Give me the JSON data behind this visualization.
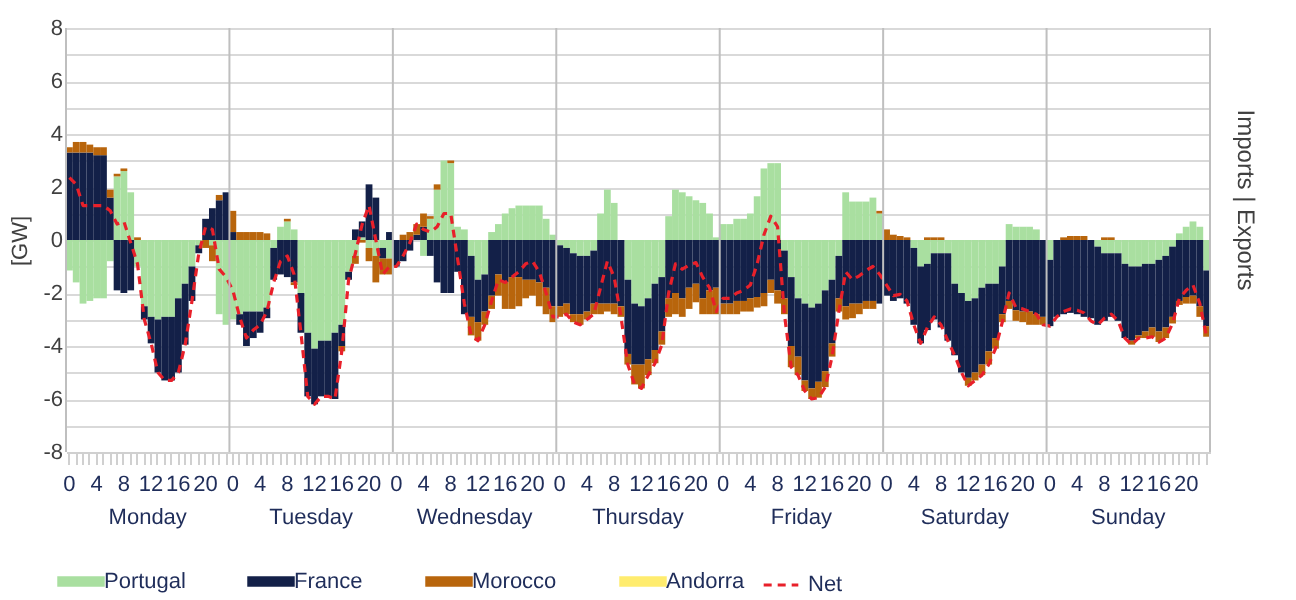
{
  "chart_data": {
    "type": "bar",
    "stacked": true,
    "ylabel": "[GW]",
    "y2label": "Imports | Exports",
    "legend": "bottom",
    "grid": "y",
    "categories": [
      "0",
      null,
      null,
      null,
      "4",
      null,
      null,
      null,
      "8",
      null,
      null,
      null,
      "12",
      null,
      null,
      null,
      "16",
      null,
      null,
      null,
      "20",
      null,
      null,
      null,
      "0",
      null,
      null,
      null,
      "4",
      null,
      null,
      null,
      "8",
      null,
      null,
      null,
      "12",
      null,
      null,
      null,
      "16",
      null,
      null,
      null,
      "20",
      null,
      null,
      null,
      "0",
      null,
      null,
      null,
      "4",
      null,
      null,
      null,
      "8",
      null,
      null,
      null,
      "12",
      null,
      null,
      null,
      "16",
      null,
      null,
      null,
      "20",
      null,
      null,
      null,
      "0",
      null,
      null,
      null,
      "4",
      null,
      null,
      null,
      "8",
      null,
      null,
      null,
      "12",
      null,
      null,
      null,
      "16",
      null,
      null,
      null,
      "20",
      null,
      null,
      null,
      "0",
      null,
      null,
      null,
      "4",
      null,
      null,
      null,
      "8",
      null,
      null,
      null,
      "12",
      null,
      null,
      null,
      "16",
      null,
      null,
      null,
      "20",
      null,
      null,
      null,
      "0",
      null,
      null,
      null,
      "4",
      null,
      null,
      null,
      "8",
      null,
      null,
      null,
      "12",
      null,
      null,
      null,
      "16",
      null,
      null,
      null,
      "20",
      null,
      null,
      null,
      "0",
      null,
      null,
      null,
      "4",
      null,
      null,
      null,
      "8",
      null,
      null,
      null,
      "12",
      null,
      null,
      null,
      "16",
      null,
      null,
      null,
      "20",
      null,
      null,
      null
    ],
    "annotations": [
      "Monday",
      "Tuesday",
      "Wednesday",
      "Thursday",
      "Friday",
      "Saturday",
      "Sunday"
    ],
    "ylim": [
      -8,
      8
    ],
    "yticks": [
      -8,
      {
        "value": -7,
        "label": null
      },
      -6,
      {
        "value": -5,
        "label": null
      },
      -4,
      {
        "value": -3,
        "label": null
      },
      -2,
      {
        "value": -1,
        "label": null
      },
      0,
      {
        "value": 1,
        "label": null
      },
      2,
      {
        "value": 3,
        "label": null
      },
      4,
      {
        "value": 5,
        "label": null
      },
      6,
      {
        "value": 7,
        "label": null
      },
      8
    ],
    "series": [
      {
        "name": "Portugal",
        "color": "#a9dfa0",
        "values": [
          -1.15,
          -1.6,
          -2.4,
          -2.3,
          -2.2,
          -2.2,
          -0.8,
          2.4,
          2.6,
          1.8,
          -1.0,
          -2.5,
          -2.9,
          -3.0,
          -2.9,
          -2.9,
          -2.2,
          -1.65,
          -1.0,
          -0.2,
          0,
          -0.2,
          -2.8,
          -3.2,
          -3.0,
          -2.8,
          -2.7,
          -2.7,
          -2.7,
          -2.55,
          -0.3,
          0.5,
          0.7,
          0.4,
          -2.0,
          -3.5,
          -4.1,
          -3.8,
          -3.8,
          -3.5,
          -3.2,
          -1.2,
          -0.6,
          0.1,
          -0.3,
          -0.6,
          -0.3,
          -0.7,
          0,
          0,
          0,
          0,
          -0.6,
          0.8,
          1.9,
          3.0,
          2.9,
          0.5,
          0.4,
          -0.6,
          -1.5,
          -1.3,
          0.3,
          0.6,
          1.0,
          1.2,
          1.3,
          1.3,
          1.3,
          1.3,
          0.8,
          0.2,
          -0.2,
          -0.3,
          -0.5,
          -0.6,
          -0.6,
          -0.4,
          1.0,
          1.9,
          1.4,
          0,
          -1.5,
          -2.4,
          -2.5,
          -2.2,
          -1.65,
          -1.4,
          0.9,
          1.9,
          1.8,
          1.65,
          1.5,
          1.4,
          1.0,
          0.1,
          0.6,
          0.6,
          0.8,
          0.8,
          1.0,
          1.65,
          2.7,
          2.9,
          2.9,
          -0.4,
          -1.4,
          -2.2,
          -2.4,
          -2.55,
          -2.4,
          -1.9,
          -1.5,
          -0.6,
          1.8,
          1.45,
          1.45,
          1.45,
          1.6,
          1.0,
          0,
          0,
          0,
          0,
          -0.3,
          -1.0,
          -0.9,
          -0.5,
          -0.5,
          -0.5,
          -1.65,
          -2.0,
          -2.3,
          -2.2,
          -1.8,
          -1.65,
          -1.65,
          -1.0,
          0.6,
          0.5,
          0.5,
          0.5,
          0.4,
          0,
          -0.75,
          0,
          0,
          0,
          0,
          0,
          0,
          -0.25,
          -0.5,
          -0.5,
          -0.5,
          -0.9,
          -1.0,
          -1.0,
          -0.9,
          -0.9,
          -0.75,
          -0.6,
          -0.25,
          0.25,
          0.5,
          0.7,
          0.5,
          -1.15
        ]
      },
      {
        "name": "France",
        "color": "#132048",
        "values": [
          3.3,
          3.3,
          3.3,
          3.3,
          3.2,
          3.2,
          1.6,
          -1.9,
          -2.0,
          -1.9,
          0,
          -0.5,
          -1.0,
          -2.0,
          -2.4,
          -2.4,
          -2.8,
          -2.3,
          -1.3,
          -0.3,
          0.8,
          1.2,
          1.5,
          1.8,
          0.3,
          -0.4,
          -1.3,
          -1.0,
          -0.8,
          -0.4,
          -1.2,
          -1.3,
          -1.4,
          -1.6,
          -1.5,
          -2.4,
          -2.1,
          -2.1,
          -2.1,
          -2.5,
          -0.8,
          -0.3,
          0.4,
          0.6,
          2.1,
          1.6,
          -0.4,
          0.3,
          -1.0,
          -0.8,
          -0.4,
          0.2,
          0.5,
          -0.6,
          -1.6,
          -2.0,
          -2.0,
          -1.2,
          -2.8,
          -2.3,
          -1.6,
          -1.4,
          -2.1,
          -1.3,
          -1.6,
          -1.4,
          -1.4,
          -1.5,
          -1.5,
          -1.6,
          -1.8,
          -2.5,
          -2.3,
          -2.1,
          -2.3,
          -2.2,
          -2.1,
          -2.0,
          -2.4,
          -2.4,
          -2.4,
          -2.5,
          -2.8,
          -2.3,
          -2.2,
          -2.3,
          -2.5,
          -2.05,
          -2.2,
          -2.0,
          -2.2,
          -1.8,
          -1.65,
          -2.2,
          -1.9,
          -1.8,
          -2.4,
          -2.4,
          -2.3,
          -2.3,
          -2.2,
          -2.15,
          -2.0,
          -1.5,
          -1.9,
          -1.8,
          -2.6,
          -2.2,
          -2.9,
          -3.05,
          -2.95,
          -3.05,
          -2.4,
          -1.6,
          -2.5,
          -2.4,
          -2.4,
          -2.3,
          -2.3,
          -2.4,
          -2.1,
          -2.3,
          -2.2,
          -2.4,
          -2.9,
          -2.9,
          -2.5,
          -2.5,
          -2.8,
          -3.3,
          -2.7,
          -3.0,
          -2.9,
          -2.8,
          -2.9,
          -2.55,
          -2.05,
          -1.8,
          -2.3,
          -2.65,
          -2.7,
          -2.7,
          -2.8,
          -2.9,
          -2.5,
          -2.9,
          -2.8,
          -2.75,
          -2.8,
          -2.9,
          -2.95,
          -2.95,
          -2.55,
          -2.4,
          -2.55,
          -2.8,
          -2.8,
          -2.6,
          -2.55,
          -2.4,
          -2.7,
          -2.7,
          -2.65,
          -2.3,
          -2.15,
          -2.1,
          -2.5,
          -2.1
        ]
      },
      {
        "name": "Morocco",
        "color": "#b8650c",
        "values": [
          0.2,
          0.4,
          0.4,
          0.3,
          0.3,
          0.3,
          0.3,
          0.1,
          0.1,
          0,
          0.1,
          0,
          0,
          0,
          0,
          0,
          0,
          0,
          0,
          0,
          -0.3,
          -0.6,
          0.2,
          0,
          0.8,
          0.3,
          0.3,
          0.3,
          0.3,
          0.25,
          0,
          0,
          0.1,
          -0.1,
          0,
          0,
          0,
          0,
          0,
          0,
          -0.2,
          0,
          -0.3,
          -0.1,
          -0.5,
          -1.0,
          -0.6,
          -0.6,
          0,
          0.2,
          0.3,
          0.4,
          0.5,
          0.1,
          0.2,
          0,
          0.1,
          0,
          0,
          -0.7,
          -0.7,
          -0.5,
          -0.5,
          -0.8,
          -1.0,
          -1.2,
          -1.1,
          -0.7,
          -0.6,
          -0.9,
          -1.0,
          -0.6,
          -0.4,
          -0.4,
          -0.3,
          -0.4,
          -0.3,
          -0.4,
          -0.4,
          -0.3,
          -0.4,
          -0.4,
          -0.4,
          -0.75,
          -0.9,
          -0.6,
          -0.5,
          -0.5,
          -0.7,
          -0.8,
          -0.7,
          -0.8,
          -0.7,
          -0.6,
          -0.9,
          -1.0,
          -0.4,
          -0.4,
          -0.5,
          -0.4,
          -0.5,
          -0.4,
          -0.5,
          -0.5,
          -0.5,
          -0.6,
          -0.8,
          -0.7,
          -0.4,
          -0.4,
          -0.6,
          -0.6,
          -0.5,
          -0.5,
          -0.5,
          -0.55,
          -0.4,
          -0.3,
          -0.3,
          0.1,
          0.4,
          0.2,
          0.15,
          0.1,
          0,
          0,
          0.1,
          0.1,
          0.1,
          0,
          0,
          0,
          -0.3,
          -0.3,
          -0.4,
          -0.5,
          -0.4,
          -0.3,
          -0.3,
          -0.4,
          -0.4,
          -0.5,
          -0.4,
          -0.3,
          0,
          0,
          0.1,
          0.15,
          0.15,
          0.15,
          0,
          0,
          0.1,
          0.1,
          0,
          0,
          -0.15,
          -0.1,
          -0.25,
          -0.35,
          -0.4,
          -0.4,
          -0.25,
          -0.15,
          -0.25,
          -0.3,
          -0.4,
          -0.4
        ]
      },
      {
        "name": "Andorra",
        "color": "#ffec6e",
        "values": [
          0,
          0,
          0,
          0,
          0,
          0,
          0,
          0,
          0,
          0,
          0,
          0,
          0,
          0,
          0,
          0,
          0,
          0,
          0,
          0,
          0,
          0,
          0,
          0,
          0,
          0,
          0,
          0,
          0,
          0,
          0,
          0,
          0,
          0,
          0,
          0,
          0,
          0,
          0,
          0,
          0,
          0,
          0,
          0,
          0,
          0,
          0,
          0,
          0,
          0,
          0,
          0,
          0,
          0,
          0,
          0,
          0,
          0,
          0,
          0,
          0,
          0,
          0,
          0,
          0,
          0,
          0,
          0,
          0,
          0,
          0,
          0,
          0,
          0,
          0,
          0,
          0,
          0,
          0,
          0,
          0,
          0,
          0,
          0,
          0,
          0,
          0,
          0,
          0,
          0,
          0,
          0,
          0,
          0,
          0,
          0,
          0,
          0,
          0,
          0,
          0,
          0,
          0,
          0,
          0,
          0,
          0,
          0,
          0,
          0,
          0,
          0,
          0,
          0,
          0,
          0,
          0,
          0,
          0,
          0,
          0,
          0,
          0,
          0,
          0,
          0,
          0,
          0,
          0,
          0,
          0,
          0,
          0,
          0,
          0,
          0,
          0,
          0,
          0,
          0,
          0,
          0,
          0,
          0,
          0,
          0,
          0,
          0,
          0,
          0,
          0,
          0,
          0,
          0,
          0,
          0,
          0,
          0,
          0,
          0,
          0,
          0,
          0,
          0,
          0,
          0,
          0,
          0
        ]
      },
      {
        "name": "Net",
        "type": "line",
        "line_style": "dashed",
        "marker": "none",
        "color": "#e8202a",
        "values": [
          2.35,
          2.1,
          1.3,
          1.3,
          1.3,
          1.3,
          1.1,
          0.6,
          0.7,
          -0.1,
          -0.9,
          -3.0,
          -3.9,
          -5.0,
          -5.3,
          -5.3,
          -5.0,
          -3.95,
          -2.3,
          -0.5,
          0.5,
          0.4,
          -1.1,
          -1.4,
          -1.9,
          -2.9,
          -3.7,
          -3.4,
          -3.2,
          -2.7,
          -1.6,
          -0.8,
          -0.6,
          -1.3,
          -3.5,
          -5.9,
          -6.2,
          -5.9,
          -5.9,
          -6.0,
          -4.2,
          -1.5,
          -0.5,
          0.6,
          1.3,
          0,
          -1.3,
          -1.0,
          -1.0,
          -0.6,
          -0.1,
          0.6,
          0.4,
          0.3,
          0.5,
          1.0,
          1.0,
          -0.7,
          -2.4,
          -3.6,
          -3.8,
          -3.2,
          -2.3,
          -1.5,
          -1.6,
          -1.4,
          -1.2,
          -0.9,
          -0.8,
          -1.2,
          -2.0,
          -2.9,
          -2.9,
          -2.8,
          -3.1,
          -3.2,
          -3.0,
          -2.8,
          -1.8,
          -0.8,
          -1.4,
          -2.9,
          -4.7,
          -5.45,
          -5.6,
          -5.1,
          -4.65,
          -3.95,
          -2.0,
          -0.9,
          -1.1,
          -0.95,
          -0.85,
          -1.4,
          -1.8,
          -2.7,
          -2.2,
          -2.2,
          -2.0,
          -1.9,
          -1.7,
          -0.9,
          0.2,
          0.9,
          0.5,
          -2.8,
          -4.8,
          -5.1,
          -5.7,
          -6.0,
          -5.95,
          -5.55,
          -4.4,
          -2.7,
          -1.2,
          -1.5,
          -1.35,
          -1.15,
          -1.0,
          -1.3,
          -1.7,
          -2.1,
          -2.05,
          -2.3,
          -3.2,
          -3.9,
          -3.3,
          -2.9,
          -3.2,
          -3.8,
          -4.35,
          -5.0,
          -5.5,
          -5.3,
          -5.1,
          -4.7,
          -4.1,
          -3.1,
          -2.0,
          -2.55,
          -2.6,
          -2.7,
          -2.8,
          -3.2,
          -3.25,
          -2.9,
          -2.7,
          -2.6,
          -2.65,
          -2.75,
          -3.05,
          -3.2,
          -2.95,
          -2.8,
          -3.05,
          -3.7,
          -3.95,
          -3.7,
          -3.7,
          -3.65,
          -3.85,
          -3.7,
          -3.15,
          -2.2,
          -1.9,
          -1.7,
          -2.4,
          -3.65
        ]
      }
    ]
  }
}
